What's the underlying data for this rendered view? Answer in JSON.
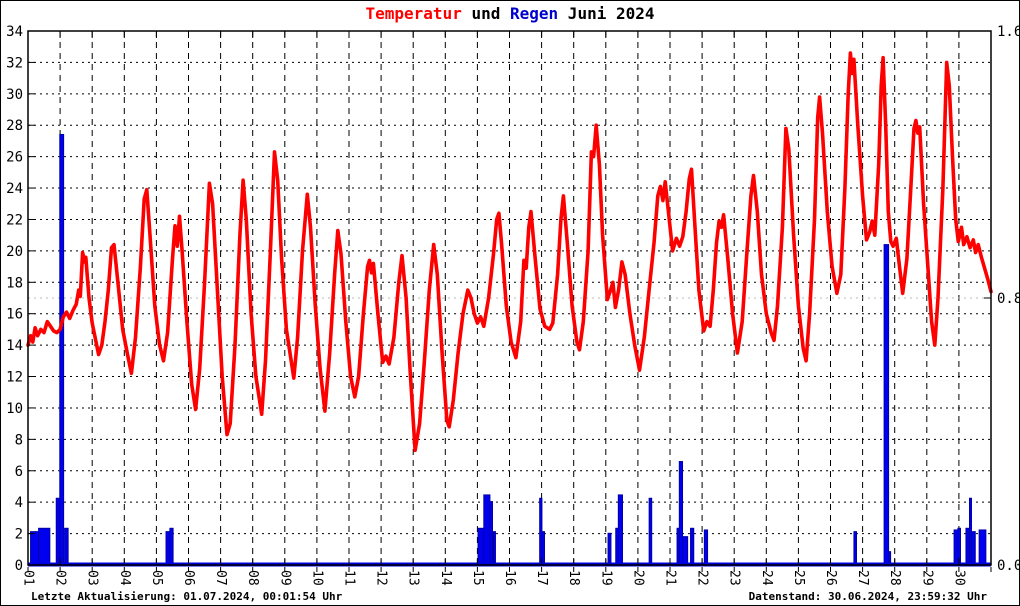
{
  "title": {
    "part1": "Temperatur",
    "part2": " und ",
    "part3": "Regen",
    "part4": " Juni 2024"
  },
  "footer": {
    "left": "Letzte Aktualisierung: 01.07.2024, 00:01:54 Uhr",
    "right": "Datenstand: 30.06.2024, 23:59:32 Uhr"
  },
  "colors": {
    "temperature_line": "#ff0000",
    "rain_bar_fill": "#0000ee",
    "rain_bar_edge": "#0000a6",
    "rain_baseline": "#0000dd",
    "grid_major": "#000000",
    "grid_y2": "#b8b8b8",
    "plot_border": "#000000",
    "title_red": "#ff0000",
    "title_blue": "#0000cc"
  },
  "chart_data": {
    "type": "line+bar",
    "title": "Temperatur und Regen Juni 2024",
    "legend": "none",
    "grid": "on",
    "x_axis": {
      "range_days": [
        0,
        30
      ],
      "tick_labels": [
        "01",
        "02",
        "03",
        "04",
        "05",
        "06",
        "07",
        "08",
        "09",
        "10",
        "11",
        "12",
        "13",
        "14",
        "15",
        "16",
        "17",
        "18",
        "19",
        "20",
        "21",
        "22",
        "23",
        "24",
        "25",
        "26",
        "27",
        "28",
        "29",
        "30"
      ],
      "label_rotation_deg": 90
    },
    "y_left": {
      "name": "Temperatur",
      "range": [
        0,
        34
      ],
      "tick_step": 2,
      "tick_labels": [
        "34",
        "32",
        "30",
        "28",
        "26",
        "24",
        "22",
        "20",
        "18",
        "16",
        "14",
        "12",
        "10",
        "8",
        "6",
        "4",
        "2",
        "0"
      ]
    },
    "y_right": {
      "name": "Regen",
      "range": [
        0,
        1.6
      ],
      "ticks": [
        {
          "label": "1.6",
          "value": 1.6
        },
        {
          "label": "0.8",
          "value": 0.8
        },
        {
          "label": "0.0",
          "value": 0.0
        }
      ]
    },
    "temperature_series": [
      [
        0.0,
        14.0
      ],
      [
        0.08,
        14.6
      ],
      [
        0.15,
        14.2
      ],
      [
        0.22,
        15.1
      ],
      [
        0.3,
        14.6
      ],
      [
        0.4,
        15.0
      ],
      [
        0.5,
        14.8
      ],
      [
        0.6,
        15.5
      ],
      [
        0.7,
        15.2
      ],
      [
        0.8,
        14.9
      ],
      [
        0.9,
        14.8
      ],
      [
        1.0,
        15.0
      ],
      [
        1.1,
        15.8
      ],
      [
        1.2,
        16.1
      ],
      [
        1.3,
        15.7
      ],
      [
        1.4,
        16.2
      ],
      [
        1.5,
        16.6
      ],
      [
        1.58,
        17.5
      ],
      [
        1.63,
        17.1
      ],
      [
        1.7,
        19.9
      ],
      [
        1.76,
        19.3
      ],
      [
        1.8,
        19.6
      ],
      [
        1.9,
        17.0
      ],
      [
        2.0,
        15.4
      ],
      [
        2.1,
        14.4
      ],
      [
        2.2,
        13.4
      ],
      [
        2.3,
        14.0
      ],
      [
        2.4,
        15.5
      ],
      [
        2.5,
        17.5
      ],
      [
        2.6,
        20.2
      ],
      [
        2.68,
        20.4
      ],
      [
        2.8,
        18.0
      ],
      [
        2.95,
        15.0
      ],
      [
        3.1,
        13.4
      ],
      [
        3.22,
        12.2
      ],
      [
        3.35,
        14.5
      ],
      [
        3.5,
        19.0
      ],
      [
        3.62,
        23.3
      ],
      [
        3.7,
        23.9
      ],
      [
        3.8,
        21.0
      ],
      [
        3.95,
        16.5
      ],
      [
        4.1,
        14.0
      ],
      [
        4.22,
        13.0
      ],
      [
        4.35,
        14.8
      ],
      [
        4.5,
        19.5
      ],
      [
        4.58,
        21.6
      ],
      [
        4.65,
        20.3
      ],
      [
        4.72,
        22.2
      ],
      [
        4.8,
        20.0
      ],
      [
        4.95,
        15.5
      ],
      [
        5.1,
        11.5
      ],
      [
        5.22,
        9.9
      ],
      [
        5.35,
        12.5
      ],
      [
        5.5,
        18.0
      ],
      [
        5.65,
        24.3
      ],
      [
        5.75,
        23.0
      ],
      [
        5.9,
        17.5
      ],
      [
        6.05,
        12.0
      ],
      [
        6.2,
        8.3
      ],
      [
        6.3,
        9.0
      ],
      [
        6.45,
        14.0
      ],
      [
        6.6,
        21.0
      ],
      [
        6.7,
        24.5
      ],
      [
        6.8,
        22.0
      ],
      [
        6.95,
        16.0
      ],
      [
        7.1,
        12.0
      ],
      [
        7.28,
        9.6
      ],
      [
        7.4,
        13.0
      ],
      [
        7.55,
        20.0
      ],
      [
        7.68,
        26.3
      ],
      [
        7.78,
        24.5
      ],
      [
        7.9,
        19.5
      ],
      [
        8.05,
        15.0
      ],
      [
        8.28,
        11.9
      ],
      [
        8.4,
        14.5
      ],
      [
        8.55,
        20.0
      ],
      [
        8.7,
        23.6
      ],
      [
        8.8,
        21.5
      ],
      [
        8.95,
        16.5
      ],
      [
        9.1,
        12.5
      ],
      [
        9.25,
        9.8
      ],
      [
        9.4,
        13.5
      ],
      [
        9.55,
        18.5
      ],
      [
        9.65,
        21.3
      ],
      [
        9.75,
        19.8
      ],
      [
        9.9,
        15.5
      ],
      [
        10.05,
        12.0
      ],
      [
        10.18,
        10.7
      ],
      [
        10.3,
        12.0
      ],
      [
        10.45,
        16.0
      ],
      [
        10.58,
        19.0
      ],
      [
        10.64,
        19.4
      ],
      [
        10.7,
        18.6
      ],
      [
        10.76,
        19.2
      ],
      [
        10.9,
        16.0
      ],
      [
        11.05,
        12.9
      ],
      [
        11.15,
        13.3
      ],
      [
        11.25,
        12.8
      ],
      [
        11.4,
        14.5
      ],
      [
        11.55,
        18.0
      ],
      [
        11.65,
        19.7
      ],
      [
        11.78,
        17.0
      ],
      [
        11.9,
        12.5
      ],
      [
        12.06,
        7.3
      ],
      [
        12.2,
        9.0
      ],
      [
        12.35,
        13.0
      ],
      [
        12.5,
        17.5
      ],
      [
        12.64,
        20.4
      ],
      [
        12.75,
        18.5
      ],
      [
        12.9,
        13.5
      ],
      [
        13.05,
        9.2
      ],
      [
        13.12,
        8.8
      ],
      [
        13.25,
        10.5
      ],
      [
        13.4,
        13.5
      ],
      [
        13.55,
        16.0
      ],
      [
        13.7,
        17.5
      ],
      [
        13.8,
        17.0
      ],
      [
        13.9,
        16.0
      ],
      [
        14.0,
        15.4
      ],
      [
        14.1,
        15.8
      ],
      [
        14.2,
        15.2
      ],
      [
        14.35,
        17.0
      ],
      [
        14.5,
        19.8
      ],
      [
        14.6,
        22.0
      ],
      [
        14.67,
        22.4
      ],
      [
        14.75,
        20.5
      ],
      [
        14.9,
        16.5
      ],
      [
        15.05,
        14.2
      ],
      [
        15.2,
        13.2
      ],
      [
        15.35,
        15.5
      ],
      [
        15.45,
        19.4
      ],
      [
        15.52,
        18.9
      ],
      [
        15.6,
        21.5
      ],
      [
        15.67,
        22.5
      ],
      [
        15.8,
        19.5
      ],
      [
        15.95,
        16.3
      ],
      [
        16.1,
        15.2
      ],
      [
        16.25,
        15.0
      ],
      [
        16.35,
        15.4
      ],
      [
        16.5,
        18.5
      ],
      [
        16.6,
        22.0
      ],
      [
        16.68,
        23.5
      ],
      [
        16.8,
        20.5
      ],
      [
        16.95,
        16.5
      ],
      [
        17.1,
        14.2
      ],
      [
        17.18,
        13.7
      ],
      [
        17.3,
        15.5
      ],
      [
        17.45,
        20.0
      ],
      [
        17.55,
        26.3
      ],
      [
        17.62,
        26.0
      ],
      [
        17.7,
        28.0
      ],
      [
        17.8,
        25.5
      ],
      [
        17.9,
        21.0
      ],
      [
        18.05,
        16.9
      ],
      [
        18.15,
        17.5
      ],
      [
        18.22,
        18.0
      ],
      [
        18.3,
        16.4
      ],
      [
        18.4,
        17.5
      ],
      [
        18.5,
        19.3
      ],
      [
        18.6,
        18.5
      ],
      [
        18.75,
        16.0
      ],
      [
        18.9,
        14.0
      ],
      [
        19.05,
        12.4
      ],
      [
        19.2,
        14.5
      ],
      [
        19.35,
        17.5
      ],
      [
        19.5,
        20.5
      ],
      [
        19.62,
        23.5
      ],
      [
        19.7,
        24.1
      ],
      [
        19.78,
        23.2
      ],
      [
        19.85,
        24.4
      ],
      [
        19.95,
        22.5
      ],
      [
        20.08,
        20.0
      ],
      [
        20.2,
        20.8
      ],
      [
        20.3,
        20.3
      ],
      [
        20.4,
        20.9
      ],
      [
        20.5,
        22.5
      ],
      [
        20.6,
        24.6
      ],
      [
        20.67,
        25.2
      ],
      [
        20.78,
        21.5
      ],
      [
        20.9,
        17.5
      ],
      [
        21.05,
        14.9
      ],
      [
        21.15,
        15.5
      ],
      [
        21.25,
        15.2
      ],
      [
        21.35,
        17.5
      ],
      [
        21.45,
        20.5
      ],
      [
        21.53,
        21.9
      ],
      [
        21.6,
        21.5
      ],
      [
        21.67,
        22.3
      ],
      [
        21.8,
        19.5
      ],
      [
        21.95,
        16.0
      ],
      [
        22.1,
        13.5
      ],
      [
        22.25,
        15.5
      ],
      [
        22.4,
        20.0
      ],
      [
        22.52,
        23.5
      ],
      [
        22.6,
        24.8
      ],
      [
        22.72,
        22.5
      ],
      [
        22.85,
        18.5
      ],
      [
        23.0,
        16.0
      ],
      [
        23.15,
        14.8
      ],
      [
        23.24,
        14.3
      ],
      [
        23.35,
        16.5
      ],
      [
        23.5,
        21.5
      ],
      [
        23.61,
        27.8
      ],
      [
        23.7,
        26.5
      ],
      [
        23.85,
        21.0
      ],
      [
        24.0,
        16.5
      ],
      [
        24.15,
        13.8
      ],
      [
        24.24,
        13.0
      ],
      [
        24.35,
        16.0
      ],
      [
        24.5,
        22.0
      ],
      [
        24.6,
        28.5
      ],
      [
        24.66,
        29.8
      ],
      [
        24.75,
        27.5
      ],
      [
        24.9,
        22.5
      ],
      [
        25.05,
        19.0
      ],
      [
        25.2,
        17.3
      ],
      [
        25.32,
        18.5
      ],
      [
        25.45,
        24.0
      ],
      [
        25.55,
        30.0
      ],
      [
        25.62,
        32.6
      ],
      [
        25.68,
        31.3
      ],
      [
        25.73,
        32.2
      ],
      [
        25.85,
        28.0
      ],
      [
        26.0,
        23.5
      ],
      [
        26.12,
        20.7
      ],
      [
        26.22,
        21.2
      ],
      [
        26.3,
        21.9
      ],
      [
        26.38,
        21.0
      ],
      [
        26.5,
        25.5
      ],
      [
        26.58,
        30.5
      ],
      [
        26.64,
        32.3
      ],
      [
        26.72,
        28.0
      ],
      [
        26.8,
        22.5
      ],
      [
        26.88,
        20.6
      ],
      [
        26.95,
        20.3
      ],
      [
        27.05,
        20.8
      ],
      [
        27.15,
        19.0
      ],
      [
        27.25,
        17.3
      ],
      [
        27.38,
        19.5
      ],
      [
        27.5,
        24.0
      ],
      [
        27.6,
        27.8
      ],
      [
        27.66,
        28.3
      ],
      [
        27.72,
        27.5
      ],
      [
        27.78,
        27.9
      ],
      [
        27.9,
        23.0
      ],
      [
        28.05,
        18.5
      ],
      [
        28.15,
        15.5
      ],
      [
        28.25,
        14.0
      ],
      [
        28.35,
        17.0
      ],
      [
        28.5,
        24.0
      ],
      [
        28.62,
        32.0
      ],
      [
        28.7,
        30.5
      ],
      [
        28.8,
        26.0
      ],
      [
        28.9,
        22.0
      ],
      [
        28.98,
        20.6
      ],
      [
        29.08,
        21.5
      ],
      [
        29.15,
        20.4
      ],
      [
        29.25,
        20.9
      ],
      [
        29.35,
        20.2
      ],
      [
        29.45,
        20.7
      ],
      [
        29.52,
        19.9
      ],
      [
        29.6,
        20.4
      ],
      [
        29.7,
        19.6
      ],
      [
        29.8,
        18.9
      ],
      [
        29.9,
        18.2
      ],
      [
        30.0,
        17.4
      ]
    ],
    "rain_bars": [
      {
        "from": 0.08,
        "to": 0.33,
        "value": 0.1
      },
      {
        "from": 0.33,
        "to": 0.68,
        "value": 0.11
      },
      {
        "from": 0.88,
        "to": 0.99,
        "value": 0.2
      },
      {
        "from": 0.99,
        "to": 1.11,
        "value": 1.29
      },
      {
        "from": 1.14,
        "to": 1.25,
        "value": 0.11
      },
      {
        "from": 4.3,
        "to": 4.42,
        "value": 0.1
      },
      {
        "from": 4.42,
        "to": 4.52,
        "value": 0.11
      },
      {
        "from": 14.02,
        "to": 14.2,
        "value": 0.11
      },
      {
        "from": 14.2,
        "to": 14.39,
        "value": 0.21
      },
      {
        "from": 14.39,
        "to": 14.47,
        "value": 0.19
      },
      {
        "from": 14.5,
        "to": 14.56,
        "value": 0.1
      },
      {
        "from": 15.94,
        "to": 16.01,
        "value": 0.2
      },
      {
        "from": 16.01,
        "to": 16.09,
        "value": 0.1
      },
      {
        "from": 18.07,
        "to": 18.16,
        "value": 0.095
      },
      {
        "from": 18.31,
        "to": 18.39,
        "value": 0.11
      },
      {
        "from": 18.39,
        "to": 18.52,
        "value": 0.21
      },
      {
        "from": 19.35,
        "to": 19.43,
        "value": 0.2
      },
      {
        "from": 20.22,
        "to": 20.29,
        "value": 0.11
      },
      {
        "from": 20.29,
        "to": 20.39,
        "value": 0.31
      },
      {
        "from": 20.39,
        "to": 20.55,
        "value": 0.085
      },
      {
        "from": 20.64,
        "to": 20.74,
        "value": 0.11
      },
      {
        "from": 21.07,
        "to": 21.17,
        "value": 0.105
      },
      {
        "from": 25.73,
        "to": 25.81,
        "value": 0.1
      },
      {
        "from": 26.67,
        "to": 26.81,
        "value": 0.96
      },
      {
        "from": 26.81,
        "to": 26.87,
        "value": 0.04
      },
      {
        "from": 28.85,
        "to": 28.97,
        "value": 0.105
      },
      {
        "from": 28.97,
        "to": 29.05,
        "value": 0.11
      },
      {
        "from": 29.22,
        "to": 29.33,
        "value": 0.11
      },
      {
        "from": 29.33,
        "to": 29.39,
        "value": 0.2
      },
      {
        "from": 29.4,
        "to": 29.51,
        "value": 0.1
      },
      {
        "from": 29.63,
        "to": 29.84,
        "value": 0.105
      }
    ]
  }
}
